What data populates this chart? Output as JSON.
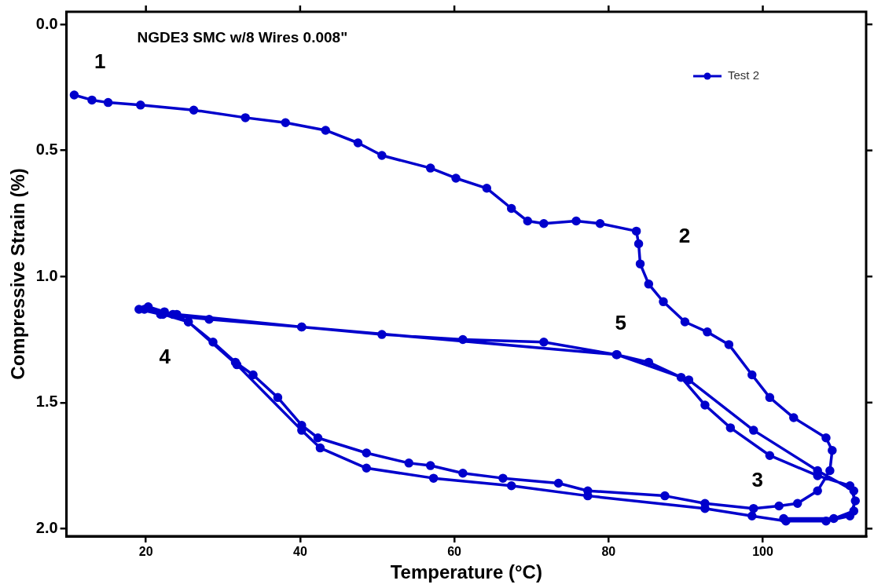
{
  "chart_data": {
    "type": "line",
    "title": "NGDE3 SMC w/8 Wires 0.008\"",
    "xlabel": "Temperature (°C)",
    "ylabel": "Compressive Strain (%)",
    "xlim": [
      9.7,
      113.4
    ],
    "ylim": [
      2.03,
      -0.05
    ],
    "xticks": [
      20,
      40,
      60,
      80,
      100
    ],
    "yticks": [
      {
        "value": 0,
        "label": "0.0"
      },
      {
        "value": 0.5,
        "label": "0.5"
      },
      {
        "value": 1,
        "label": "1.0"
      },
      {
        "value": 1.5,
        "label": "1.5"
      },
      {
        "value": 2,
        "label": "2.0"
      }
    ],
    "grid": false,
    "legend": "top right",
    "marker": "circle",
    "line_style": "solid",
    "annotations": [
      "1",
      "2",
      "3",
      "4",
      "5"
    ],
    "series": [
      {
        "name": "Test 2",
        "color": "#0000cc",
        "x": [
          10.7,
          13.0,
          15.1,
          19.3,
          26.2,
          32.9,
          38.1,
          43.3,
          47.5,
          50.6,
          56.9,
          60.2,
          64.2,
          67.4,
          69.5,
          71.6,
          75.8,
          78.9,
          83.6,
          83.9,
          84.1,
          85.2,
          87.1,
          89.9,
          92.8,
          95.6,
          98.6,
          100.9,
          104.0,
          108.2,
          109.0,
          108.7,
          107.1,
          104.5,
          102.1,
          98.8,
          92.5,
          87.3,
          77.3,
          73.5,
          66.3,
          61.1,
          56.9,
          54.1,
          48.6,
          42.3,
          40.2,
          37.1,
          33.9,
          31.6,
          28.7,
          25.5,
          23.5,
          22.4,
          20.3,
          19.1,
          21.9,
          28.2,
          40.2,
          50.6,
          61.1,
          71.6,
          81.0,
          85.2,
          89.4,
          92.5,
          95.8,
          100.9,
          107.1,
          111.3,
          112.0,
          111.3,
          108.2,
          103.0,
          98.6,
          92.5,
          77.3,
          67.4,
          57.3,
          48.6,
          42.6,
          40.2,
          31.8,
          25.5,
          22.2,
          19.8,
          24.0,
          40.2,
          81.1,
          90.4,
          98.8,
          107.1,
          111.8,
          111.8,
          109.2,
          102.7
        ],
        "values": [
          0.28,
          0.3,
          0.31,
          0.32,
          0.34,
          0.37,
          0.39,
          0.42,
          0.47,
          0.52,
          0.57,
          0.61,
          0.65,
          0.73,
          0.78,
          0.79,
          0.78,
          0.79,
          0.82,
          0.87,
          0.95,
          1.03,
          1.1,
          1.18,
          1.22,
          1.27,
          1.39,
          1.48,
          1.56,
          1.64,
          1.69,
          1.77,
          1.85,
          1.9,
          1.91,
          1.92,
          1.9,
          1.87,
          1.85,
          1.82,
          1.8,
          1.78,
          1.75,
          1.74,
          1.7,
          1.64,
          1.59,
          1.48,
          1.39,
          1.34,
          1.26,
          1.18,
          1.15,
          1.14,
          1.12,
          1.13,
          1.15,
          1.17,
          1.2,
          1.23,
          1.25,
          1.26,
          1.31,
          1.34,
          1.4,
          1.51,
          1.6,
          1.71,
          1.79,
          1.83,
          1.89,
          1.95,
          1.97,
          1.97,
          1.95,
          1.92,
          1.87,
          1.83,
          1.8,
          1.76,
          1.68,
          1.61,
          1.35,
          1.18,
          1.15,
          1.13,
          1.15,
          1.2,
          1.31,
          1.41,
          1.61,
          1.77,
          1.85,
          1.93,
          1.96,
          1.96
        ]
      }
    ]
  }
}
